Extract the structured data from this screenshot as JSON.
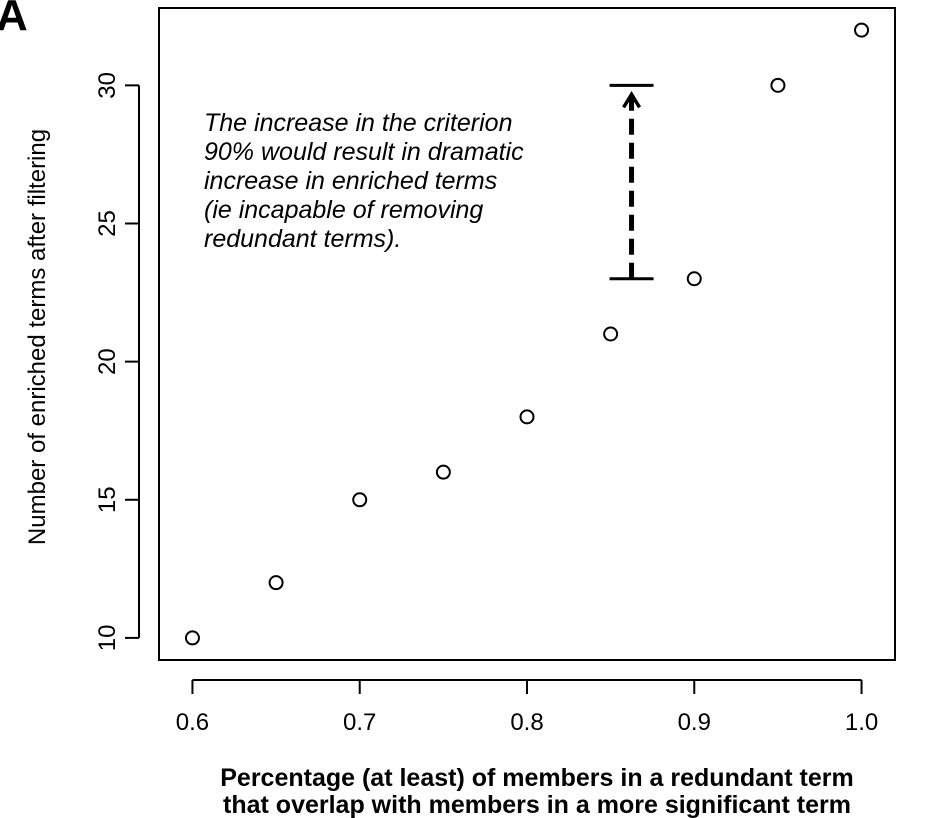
{
  "panel_label": "A",
  "chart_data": {
    "type": "scatter",
    "x": [
      0.6,
      0.65,
      0.7,
      0.75,
      0.8,
      0.85,
      0.9,
      0.95,
      1.0
    ],
    "y": [
      10,
      12,
      15,
      16,
      18,
      21,
      23,
      30,
      32
    ],
    "xlabel_lines": [
      "Percentage (at least) of members in a redundant term",
      "that overlap with members in a more significant term"
    ],
    "ylabel": "Number of enriched terms after filtering",
    "xticks": [
      0.6,
      0.7,
      0.8,
      0.9,
      1.0
    ],
    "xtick_labels": [
      "0.6",
      "0.7",
      "0.8",
      "0.9",
      "1.0"
    ],
    "yticks": [
      10,
      15,
      20,
      25,
      30
    ],
    "ytick_labels": [
      "10",
      "15",
      "20",
      "25",
      "30"
    ],
    "xlim": [
      0.58,
      1.02
    ],
    "ylim": [
      9.2,
      32.8
    ],
    "marker": "open-circle",
    "grid": false,
    "annotation": {
      "lines": [
        "The increase in the criterion",
        "90% would result in dramatic",
        "increase in enriched terms",
        "(ie incapable of removing",
        "redundant terms)."
      ],
      "arrow_x": 0.8625,
      "arrow_from_y": 23,
      "arrow_to_y": 30
    }
  }
}
